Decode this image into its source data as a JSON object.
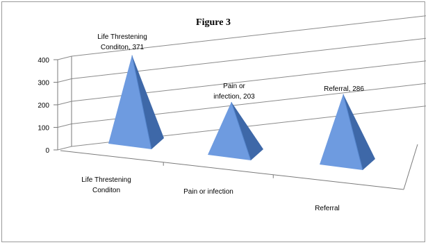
{
  "chart_data": {
    "type": "bar",
    "shape": "pyramid",
    "projection": "3d",
    "title": "Figure 3",
    "categories": [
      "Life Threstening Conditon",
      "Pain or infection",
      "Referral"
    ],
    "series": [
      {
        "values": [
          371,
          203,
          286
        ]
      }
    ],
    "data_labels": [
      [
        "Life Threstening",
        "Conditon, 371"
      ],
      [
        "Pain or",
        "infection, 203"
      ],
      [
        "Referral, 286"
      ]
    ],
    "category_labels": [
      [
        "Life Threstening",
        "Conditon"
      ],
      [
        "Pain or infection"
      ],
      [
        "Referral"
      ]
    ],
    "yticks": [
      "0",
      "100",
      "200",
      "300",
      "400"
    ],
    "ylim": [
      0,
      400
    ],
    "grid": true,
    "legend": "none",
    "colors": {
      "light": "#6e9be0",
      "dark": "#3e68a8",
      "mid": "#5585cc",
      "shadow": "#2f5690"
    }
  }
}
